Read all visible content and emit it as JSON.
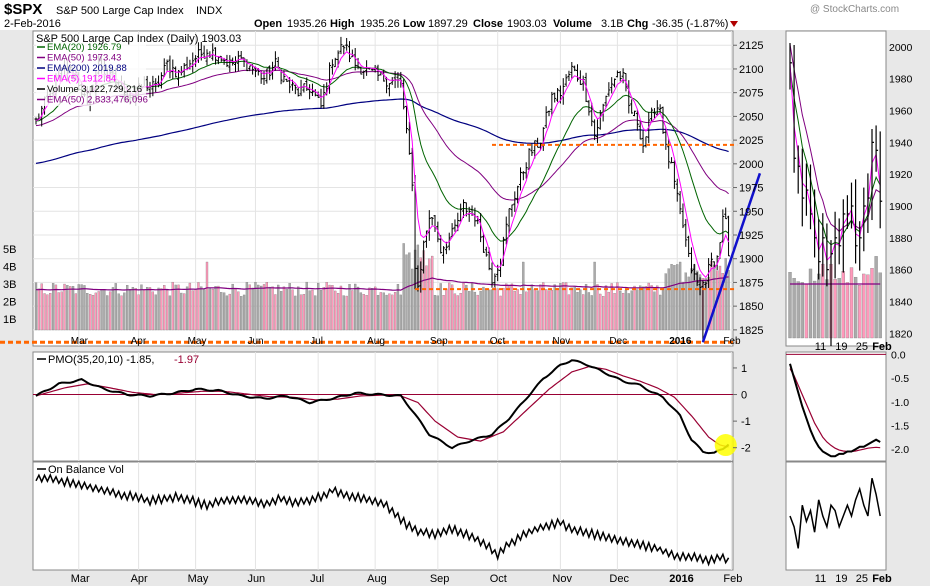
{
  "header": {
    "symbol": "$SPX",
    "name": "S&P 500 Large Cap Index",
    "exchange": "INDX",
    "date": "2-Feb-2016",
    "open_label": "Open",
    "open": "1935.26",
    "high_label": "High",
    "high": "1935.26",
    "low_label": "Low",
    "low": "1897.29",
    "close_label": "Close",
    "close": "1903.03",
    "volume_label": "Volume",
    "volume": "3.1B",
    "chg_label": "Chg",
    "chg": "-36.35 (-1.87%)",
    "watermark": "@ StockCharts.com"
  },
  "colors": {
    "price_bar": "#000000",
    "ema20": "#006400",
    "ema50": "#800080",
    "ema200": "#000080",
    "ema5": "#ff00ff",
    "volume_up": "#ff99bb",
    "volume_down": "#aaaaaa",
    "vol_ema": "#800080",
    "pmo": "#000000",
    "pmo_signal": "#990033",
    "obv": "#000000",
    "support_line": "#ff6600",
    "trend_line": "#1010cc",
    "highlight": "#ffff00",
    "panel_border": "#888888",
    "frame_bg": "#e6e6e6"
  },
  "chart_data": [
    {
      "id": "price",
      "type": "ohlc",
      "title": "S&P 500 Large Cap Index (Daily) 1903.03",
      "ylim": [
        1808,
        2140
      ],
      "y_ticks": [
        1825,
        1850,
        1875,
        1900,
        1925,
        1950,
        1975,
        2000,
        2025,
        2050,
        2075,
        2100,
        2125
      ],
      "y_tick_labels": [
        "1825",
        "1850",
        "1875",
        "1900",
        "1925",
        "1950",
        "1975",
        "2000",
        "2025",
        "2050",
        "2075",
        "2100",
        "2125"
      ],
      "months": [
        {
          "label": "Mar",
          "day": 15
        },
        {
          "label": "Apr",
          "day": 36
        },
        {
          "label": "May",
          "day": 56
        },
        {
          "label": "Jun",
          "day": 77
        },
        {
          "label": "Jul",
          "day": 99
        },
        {
          "label": "Aug",
          "day": 119
        },
        {
          "label": "Sep",
          "day": 141
        },
        {
          "label": "Oct",
          "day": 162
        },
        {
          "label": "Nov",
          "day": 184
        },
        {
          "label": "Dec",
          "day": 204
        },
        {
          "label": "2016",
          "day": 225
        },
        {
          "label": "Feb",
          "day": 244
        }
      ],
      "legend": [
        {
          "text": "EMA(20) 1926.79",
          "color": "#006400"
        },
        {
          "text": "EMA(50) 1973.43",
          "color": "#800080"
        },
        {
          "text": "EMA(200) 2019.88",
          "color": "#000080"
        },
        {
          "text": "EMA(5) 1912.84",
          "color": "#ff00ff"
        },
        {
          "text": "Volume 3,122,729,216",
          "color": "#000000"
        },
        {
          "text": "EMA(50) 2,833,476,096",
          "color": "#800080"
        }
      ],
      "volume_ticks": [
        "1B",
        "2B",
        "3B",
        "4B",
        "5B"
      ],
      "close_anchors": [
        [
          0,
          2045
        ],
        [
          6,
          2080
        ],
        [
          10,
          2100
        ],
        [
          14,
          2095
        ],
        [
          18,
          2060
        ],
        [
          22,
          2105
        ],
        [
          26,
          2090
        ],
        [
          30,
          2080
        ],
        [
          34,
          2070
        ],
        [
          38,
          2085
        ],
        [
          42,
          2080
        ],
        [
          46,
          2105
        ],
        [
          50,
          2095
        ],
        [
          55,
          2110
        ],
        [
          60,
          2120
        ],
        [
          64,
          2115
        ],
        [
          68,
          2105
        ],
        [
          72,
          2110
        ],
        [
          76,
          2100
        ],
        [
          80,
          2090
        ],
        [
          84,
          2105
        ],
        [
          88,
          2085
        ],
        [
          92,
          2075
        ],
        [
          96,
          2080
        ],
        [
          100,
          2060
        ],
        [
          104,
          2110
        ],
        [
          108,
          2125
        ],
        [
          112,
          2105
        ],
        [
          116,
          2098
        ],
        [
          120,
          2092
        ],
        [
          124,
          2088
        ],
        [
          128,
          2085
        ],
        [
          130,
          2035
        ],
        [
          132,
          1975
        ],
        [
          133,
          1895
        ],
        [
          134,
          1870
        ],
        [
          136,
          1915
        ],
        [
          138,
          1945
        ],
        [
          140,
          1935
        ],
        [
          142,
          1910
        ],
        [
          146,
          1925
        ],
        [
          150,
          1955
        ],
        [
          154,
          1945
        ],
        [
          156,
          1925
        ],
        [
          160,
          1880
        ],
        [
          163,
          1900
        ],
        [
          166,
          1950
        ],
        [
          170,
          1985
        ],
        [
          173,
          2010
        ],
        [
          177,
          2025
        ],
        [
          181,
          2070
        ],
        [
          184,
          2075
        ],
        [
          188,
          2100
        ],
        [
          192,
          2085
        ],
        [
          194,
          2060
        ],
        [
          196,
          2030
        ],
        [
          198,
          2050
        ],
        [
          201,
          2080
        ],
        [
          204,
          2095
        ],
        [
          206,
          2090
        ],
        [
          208,
          2060
        ],
        [
          211,
          2045
        ],
        [
          213,
          2020
        ],
        [
          215,
          2040
        ],
        [
          217,
          2060
        ],
        [
          219,
          2060
        ],
        [
          221,
          2015
        ],
        [
          223,
          1995
        ],
        [
          225,
          1962
        ],
        [
          227,
          1935
        ],
        [
          229,
          1900
        ],
        [
          231,
          1880
        ],
        [
          233,
          1868
        ],
        [
          235,
          1880
        ],
        [
          237,
          1896
        ],
        [
          239,
          1900
        ],
        [
          241,
          1940
        ],
        [
          242,
          1939
        ],
        [
          243,
          1903
        ]
      ],
      "support_lines": [
        {
          "y": 2020,
          "x_from": 160,
          "x_to": 246
        },
        {
          "y": 1868,
          "x_from": 133,
          "x_to": 246
        },
        {
          "y": 1812,
          "x_from": 0,
          "x_to": 246
        }
      ],
      "trend_line": {
        "x1": 234,
        "y1": 1812,
        "x2": 254,
        "y2": 1990
      }
    },
    {
      "id": "pmo",
      "type": "line",
      "title": "PMO(35,20,10) -1.85, -1.97",
      "title_main": "PMO(35,20,10) -1.85,",
      "title_signal": "-1.97",
      "ylim": [
        -2.5,
        1.6
      ],
      "y_ticks": [
        -2,
        -1,
        0,
        1
      ],
      "y_tick_labels": [
        "-2",
        "-1",
        "0",
        "1"
      ],
      "pmo_anchors": [
        [
          0,
          -0.05
        ],
        [
          8,
          0.4
        ],
        [
          16,
          0.55
        ],
        [
          24,
          0.2
        ],
        [
          32,
          0.0
        ],
        [
          40,
          -0.05
        ],
        [
          48,
          0.05
        ],
        [
          56,
          0.2
        ],
        [
          64,
          0.15
        ],
        [
          72,
          -0.05
        ],
        [
          80,
          -0.15
        ],
        [
          88,
          -0.05
        ],
        [
          96,
          -0.3
        ],
        [
          104,
          -0.15
        ],
        [
          112,
          0.05
        ],
        [
          120,
          0.0
        ],
        [
          128,
          -0.05
        ],
        [
          132,
          -0.6
        ],
        [
          138,
          -1.5
        ],
        [
          146,
          -2.0
        ],
        [
          152,
          -1.75
        ],
        [
          160,
          -1.5
        ],
        [
          166,
          -0.9
        ],
        [
          172,
          -0.15
        ],
        [
          178,
          0.6
        ],
        [
          184,
          1.1
        ],
        [
          188,
          1.3
        ],
        [
          194,
          1.1
        ],
        [
          200,
          0.8
        ],
        [
          206,
          0.5
        ],
        [
          212,
          0.35
        ],
        [
          216,
          0.1
        ],
        [
          220,
          -0.1
        ],
        [
          226,
          -0.8
        ],
        [
          230,
          -1.7
        ],
        [
          234,
          -2.15
        ],
        [
          238,
          -2.2
        ],
        [
          241,
          -2.05
        ],
        [
          243,
          -1.85
        ]
      ],
      "signal_anchors": [
        [
          0,
          -0.05
        ],
        [
          10,
          0.25
        ],
        [
          18,
          0.4
        ],
        [
          26,
          0.25
        ],
        [
          34,
          0.08
        ],
        [
          42,
          0.0
        ],
        [
          50,
          0.05
        ],
        [
          58,
          0.12
        ],
        [
          66,
          0.12
        ],
        [
          74,
          0.02
        ],
        [
          82,
          -0.08
        ],
        [
          90,
          -0.1
        ],
        [
          98,
          -0.2
        ],
        [
          106,
          -0.17
        ],
        [
          114,
          -0.05
        ],
        [
          122,
          -0.02
        ],
        [
          128,
          -0.05
        ],
        [
          134,
          -0.3
        ],
        [
          140,
          -1.0
        ],
        [
          148,
          -1.6
        ],
        [
          156,
          -1.75
        ],
        [
          164,
          -1.4
        ],
        [
          172,
          -0.6
        ],
        [
          180,
          0.2
        ],
        [
          188,
          0.85
        ],
        [
          194,
          1.05
        ],
        [
          200,
          0.95
        ],
        [
          206,
          0.7
        ],
        [
          212,
          0.5
        ],
        [
          218,
          0.25
        ],
        [
          224,
          -0.1
        ],
        [
          230,
          -0.8
        ],
        [
          236,
          -1.6
        ],
        [
          240,
          -1.9
        ],
        [
          243,
          -1.97
        ]
      ]
    },
    {
      "id": "obv",
      "type": "line",
      "title": "On Balance Vol",
      "ylim": [
        0,
        10
      ],
      "obv_anchors": [
        [
          0,
          8.6
        ],
        [
          10,
          8.2
        ],
        [
          20,
          7.6
        ],
        [
          30,
          7.0
        ],
        [
          40,
          6.4
        ],
        [
          50,
          6.8
        ],
        [
          60,
          6.0
        ],
        [
          66,
          6.4
        ],
        [
          72,
          6.6
        ],
        [
          80,
          6.1
        ],
        [
          86,
          6.6
        ],
        [
          92,
          6.2
        ],
        [
          100,
          6.8
        ],
        [
          104,
          7.4
        ],
        [
          108,
          7.0
        ],
        [
          116,
          6.6
        ],
        [
          122,
          6.2
        ],
        [
          126,
          5.2
        ],
        [
          130,
          4.2
        ],
        [
          134,
          3.6
        ],
        [
          140,
          3.3
        ],
        [
          146,
          3.8
        ],
        [
          152,
          3.2
        ],
        [
          158,
          2.4
        ],
        [
          162,
          1.4
        ],
        [
          166,
          2.4
        ],
        [
          172,
          3.4
        ],
        [
          178,
          4.0
        ],
        [
          184,
          4.4
        ],
        [
          188,
          3.8
        ],
        [
          196,
          3.3
        ],
        [
          204,
          2.8
        ],
        [
          212,
          2.3
        ],
        [
          218,
          2.0
        ],
        [
          224,
          1.3
        ],
        [
          230,
          1.2
        ],
        [
          236,
          0.9
        ],
        [
          240,
          1.3
        ],
        [
          243,
          0.9
        ]
      ]
    }
  ],
  "zoom_panel": {
    "x_labels": [
      "11",
      "19",
      "25",
      "Feb"
    ],
    "price_ticks": [
      "1820",
      "1840",
      "1860",
      "1880",
      "1900",
      "1920",
      "1940",
      "1960",
      "1980",
      "2000"
    ],
    "pmo_ticks": [
      "0.0",
      "-0.5",
      "-1.0",
      "-1.5",
      "-2.0"
    ],
    "price_ylim": [
      1812,
      2010
    ],
    "pmo_ylim": [
      -2.25,
      0.05
    ],
    "closes": [
      1990,
      1930,
      1925,
      1905,
      1910,
      1895,
      1880,
      1865,
      1880,
      1860,
      1870,
      1880,
      1875,
      1895,
      1895,
      1900,
      1875,
      1880,
      1900,
      1905,
      1940,
      1935,
      1903
    ],
    "pmo": [
      -0.2,
      -0.5,
      -0.8,
      -1.1,
      -1.35,
      -1.6,
      -1.8,
      -1.95,
      -2.05,
      -2.1,
      -2.15,
      -2.15,
      -2.1,
      -2.1,
      -2.05,
      -2.05,
      -2.0,
      -1.95,
      -1.95,
      -1.9,
      -1.85,
      -1.8,
      -1.85
    ],
    "signal": [
      -0.3,
      -0.45,
      -0.65,
      -0.85,
      -1.05,
      -1.25,
      -1.45,
      -1.6,
      -1.75,
      -1.85,
      -1.92,
      -1.98,
      -2.02,
      -2.04,
      -2.05,
      -2.05,
      -2.04,
      -2.02,
      -2.0,
      -1.98,
      -1.97,
      -1.96,
      -1.97
    ],
    "obv": [
      5.0,
      4.0,
      2.0,
      6.0,
      4.5,
      5.5,
      3.5,
      6.5,
      5.0,
      4.0,
      6.0,
      5.5,
      4.0,
      5.0,
      6.0,
      5.0,
      6.5,
      7.5,
      6.0,
      5.0,
      8.5,
      7.0,
      5.0
    ]
  }
}
